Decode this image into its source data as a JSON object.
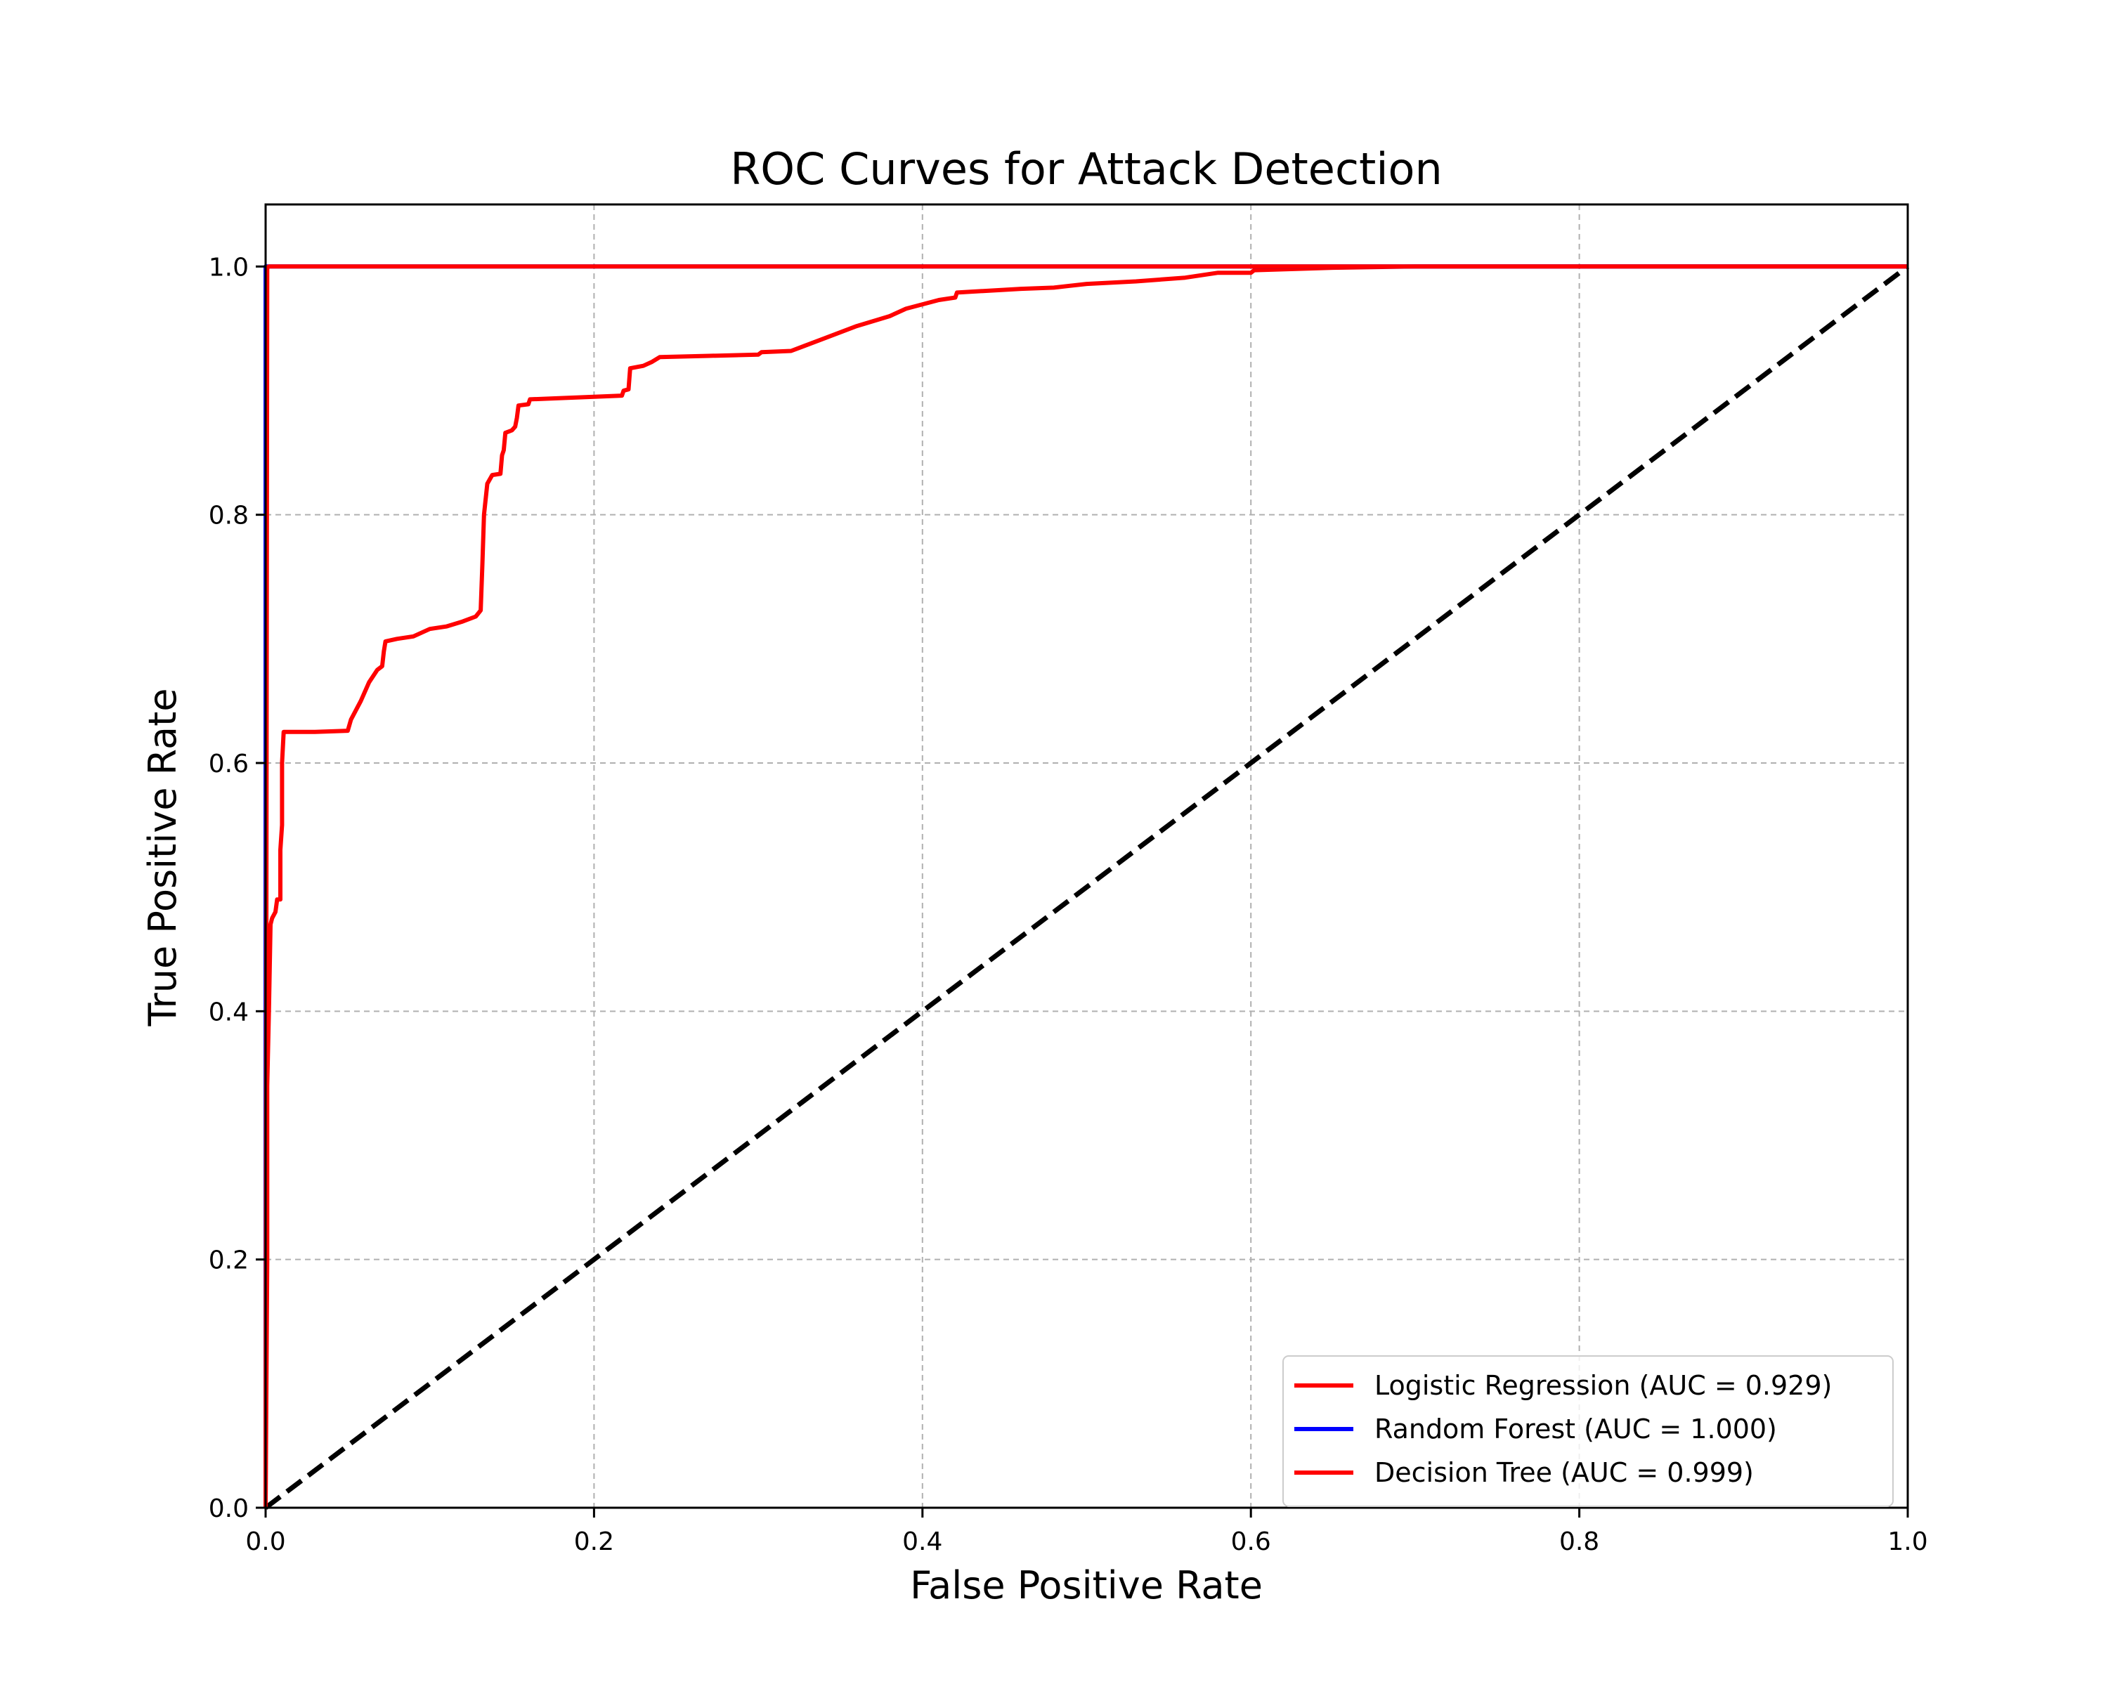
{
  "chart_data": {
    "type": "line",
    "title": "ROC Curves for Attack Detection",
    "xlabel": "False Positive Rate",
    "ylabel": "True Positive Rate",
    "xlim": [
      0.0,
      1.0
    ],
    "ylim": [
      0.0,
      1.05
    ],
    "xticks": [
      "0.0",
      "0.2",
      "0.4",
      "0.6",
      "0.8",
      "1.0"
    ],
    "yticks": [
      "0.0",
      "0.2",
      "0.4",
      "0.6",
      "0.8",
      "1.0"
    ],
    "grid": true,
    "grid_style": "dashed",
    "legend_position": "lower-right",
    "series": [
      {
        "name": "Logistic Regression (AUC = 0.929)",
        "color": "#ff0000",
        "points": [
          [
            0.0,
            0.0
          ],
          [
            0.001,
            0.2
          ],
          [
            0.001,
            0.34
          ],
          [
            0.002,
            0.4
          ],
          [
            0.003,
            0.47
          ],
          [
            0.004,
            0.475
          ],
          [
            0.006,
            0.48
          ],
          [
            0.007,
            0.49
          ],
          [
            0.009,
            0.49
          ],
          [
            0.009,
            0.53
          ],
          [
            0.01,
            0.55
          ],
          [
            0.01,
            0.6
          ],
          [
            0.011,
            0.625
          ],
          [
            0.03,
            0.625
          ],
          [
            0.05,
            0.626
          ],
          [
            0.052,
            0.635
          ],
          [
            0.058,
            0.65
          ],
          [
            0.063,
            0.665
          ],
          [
            0.068,
            0.675
          ],
          [
            0.071,
            0.678
          ],
          [
            0.072,
            0.69
          ],
          [
            0.073,
            0.698
          ],
          [
            0.08,
            0.7
          ],
          [
            0.09,
            0.702
          ],
          [
            0.1,
            0.708
          ],
          [
            0.11,
            0.71
          ],
          [
            0.12,
            0.714
          ],
          [
            0.128,
            0.718
          ],
          [
            0.131,
            0.723
          ],
          [
            0.132,
            0.76
          ],
          [
            0.133,
            0.8
          ],
          [
            0.135,
            0.825
          ],
          [
            0.138,
            0.832
          ],
          [
            0.143,
            0.833
          ],
          [
            0.144,
            0.848
          ],
          [
            0.145,
            0.852
          ],
          [
            0.146,
            0.866
          ],
          [
            0.15,
            0.868
          ],
          [
            0.152,
            0.871
          ],
          [
            0.153,
            0.878
          ],
          [
            0.154,
            0.888
          ],
          [
            0.16,
            0.889
          ],
          [
            0.161,
            0.893
          ],
          [
            0.18,
            0.894
          ],
          [
            0.2,
            0.895
          ],
          [
            0.217,
            0.896
          ],
          [
            0.218,
            0.9
          ],
          [
            0.221,
            0.901
          ],
          [
            0.222,
            0.918
          ],
          [
            0.23,
            0.92
          ],
          [
            0.235,
            0.923
          ],
          [
            0.24,
            0.927
          ],
          [
            0.27,
            0.928
          ],
          [
            0.3,
            0.929
          ],
          [
            0.302,
            0.931
          ],
          [
            0.32,
            0.932
          ],
          [
            0.34,
            0.942
          ],
          [
            0.36,
            0.952
          ],
          [
            0.38,
            0.96
          ],
          [
            0.39,
            0.966
          ],
          [
            0.41,
            0.973
          ],
          [
            0.42,
            0.975
          ],
          [
            0.421,
            0.979
          ],
          [
            0.46,
            0.982
          ],
          [
            0.48,
            0.983
          ],
          [
            0.5,
            0.986
          ],
          [
            0.53,
            0.988
          ],
          [
            0.56,
            0.991
          ],
          [
            0.58,
            0.995
          ],
          [
            0.6,
            0.995
          ],
          [
            0.602,
            0.997
          ],
          [
            0.65,
            0.999
          ],
          [
            0.7,
            1.0
          ],
          [
            1.0,
            1.0
          ]
        ]
      },
      {
        "name": "Random Forest (AUC = 1.000)",
        "color": "#0000ff",
        "points": [
          [
            0.0,
            0.0
          ],
          [
            0.0,
            1.0
          ],
          [
            1.0,
            1.0
          ]
        ]
      },
      {
        "name": "Decision Tree (AUC = 0.999)",
        "color": "#ff0000",
        "points": [
          [
            0.0,
            0.0
          ],
          [
            0.001,
            0.999
          ],
          [
            0.002,
            1.0
          ],
          [
            1.0,
            1.0
          ]
        ]
      },
      {
        "name": "",
        "color": "#000000",
        "dashed": true,
        "points": [
          [
            0.0,
            0.0
          ],
          [
            1.0,
            1.0
          ]
        ]
      }
    ]
  }
}
